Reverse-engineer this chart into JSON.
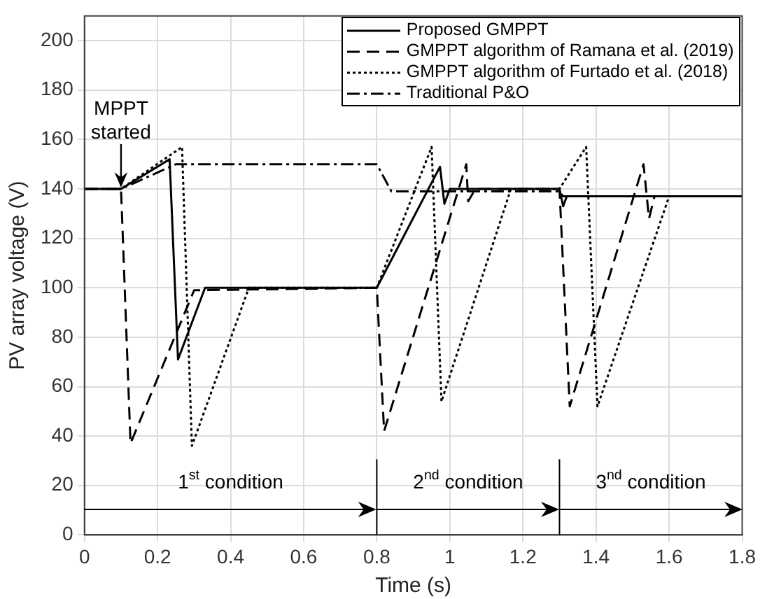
{
  "chart_data": {
    "type": "line",
    "xlabel": "Time (s)",
    "ylabel": "PV array voltage (V)",
    "xlim": [
      0,
      1.8
    ],
    "xticks": [
      0,
      0.2,
      0.4,
      0.6,
      0.8,
      1,
      1.2,
      1.4,
      1.6,
      1.8
    ],
    "ylim": [
      0,
      210
    ],
    "yticks": [
      0,
      20,
      40,
      60,
      80,
      100,
      120,
      140,
      160,
      180,
      200
    ],
    "grid": true,
    "legend": "top right",
    "marker": "none",
    "series": [
      {
        "name": "Proposed GMPPT",
        "color": "#000000",
        "line_style": "solid",
        "x": [
          0,
          0.1,
          0.233,
          0.256,
          0.33,
          0.8,
          0.973,
          0.985,
          1.0,
          1.3,
          1.31,
          1.32,
          1.8
        ],
        "values": [
          140,
          140,
          152,
          71,
          100,
          100,
          149,
          134,
          140,
          140,
          133,
          137,
          137
        ]
      },
      {
        "name": "GMPPT algorithm of Ramana et al. (2019)",
        "color": "#000000",
        "line_style": "dashed",
        "x": [
          0,
          0.1,
          0.126,
          0.3,
          0.8,
          0.82,
          1.045,
          1.05,
          1.07,
          1.3,
          1.328,
          1.53,
          1.545,
          1.56,
          1.8
        ],
        "values": [
          140,
          140,
          37,
          99,
          100,
          42,
          150,
          135,
          140,
          140,
          52,
          150,
          128,
          137,
          137
        ]
      },
      {
        "name": "GMPPT algorithm of Furtado et al. (2018)",
        "color": "#000000",
        "line_style": "dotted",
        "x": [
          0,
          0.1,
          0.267,
          0.294,
          0.45,
          0.8,
          0.95,
          0.977,
          1.167,
          1.3,
          1.373,
          1.404,
          1.6,
          1.8
        ],
        "values": [
          140,
          140,
          157,
          36,
          100,
          100,
          157,
          54,
          140,
          140,
          157,
          52,
          137,
          137
        ]
      },
      {
        "name": "Traditional P&O",
        "color": "#000000",
        "line_style": "dashdot",
        "x": [
          0,
          0.1,
          0.25,
          0.8,
          0.84,
          1.3,
          1.31,
          1.8
        ],
        "values": [
          140,
          140,
          150,
          150,
          139,
          139,
          137,
          137
        ]
      }
    ],
    "annotations": [
      {
        "text": "MPPT started",
        "x": 0.1,
        "y": 140
      },
      "1$^{st}$ condition",
      "2$^{nd}$ condition",
      "3$^{nd}$ condition"
    ],
    "ref_lines": [
      {
        "axis": "x",
        "value": 0.8,
        "color": "#000000"
      },
      {
        "axis": "x",
        "value": 1.3,
        "color": "#000000"
      }
    ]
  }
}
